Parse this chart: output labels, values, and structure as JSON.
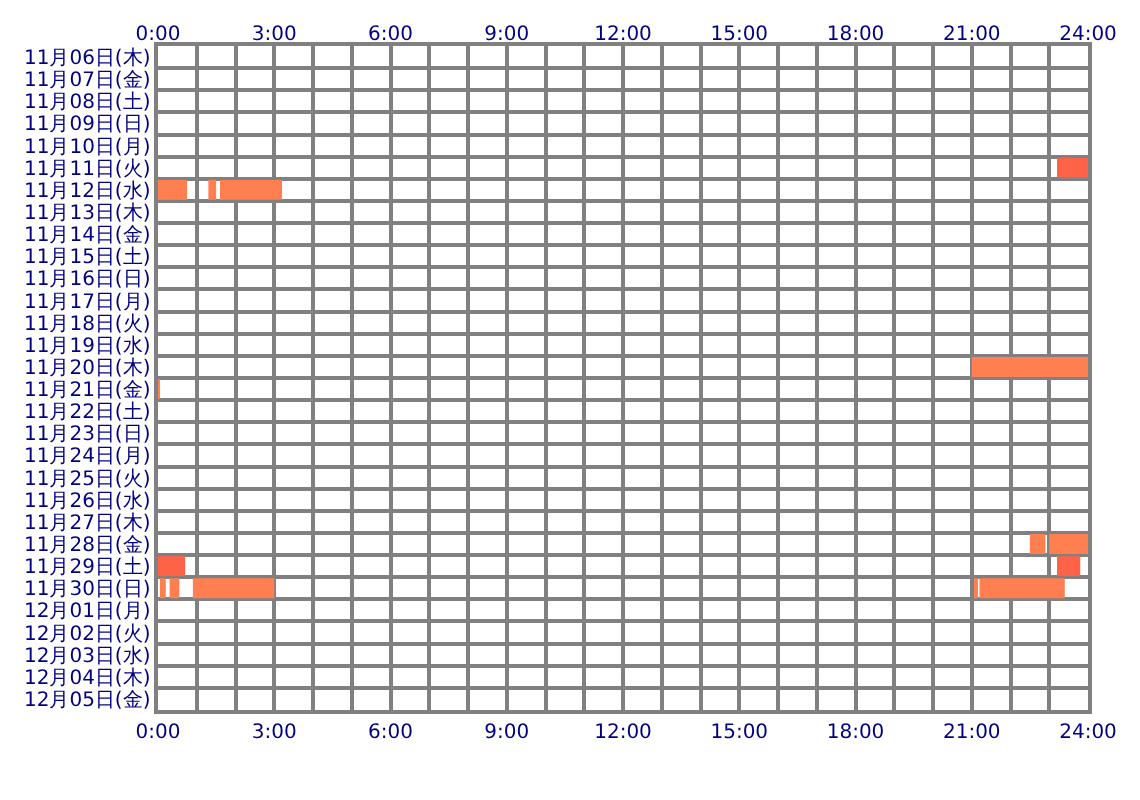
{
  "chart_data": {
    "type": "bar",
    "orientation": "horizontal",
    "grid": true,
    "categories": [
      "11月06日(木)",
      "11月07日(金)",
      "11月08日(土)",
      "11月09日(日)",
      "11月10日(月)",
      "11月11日(火)",
      "11月12日(水)",
      "11月13日(木)",
      "11月14日(金)",
      "11月15日(土)",
      "11月16日(日)",
      "11月17日(月)",
      "11月18日(火)",
      "11月19日(水)",
      "11月20日(木)",
      "11月21日(金)",
      "11月22日(土)",
      "11月23日(日)",
      "11月24日(月)",
      "11月25日(火)",
      "11月26日(水)",
      "11月27日(木)",
      "11月28日(金)",
      "11月29日(土)",
      "11月30日(日)",
      "12月01日(月)",
      "12月02日(火)",
      "12月03日(水)",
      "12月04日(木)",
      "12月05日(金)"
    ],
    "series": [
      {
        "base": [
          null,
          null,
          null,
          null,
          null,
          23.2,
          0,
          null,
          null,
          null,
          null,
          null,
          null,
          null,
          21,
          0,
          null,
          null,
          null,
          null,
          null,
          null,
          22.5,
          0,
          0.05,
          null,
          null,
          null,
          null,
          null
        ],
        "values": [
          null,
          null,
          null,
          null,
          null,
          0.8,
          0.75,
          null,
          null,
          null,
          null,
          null,
          null,
          null,
          3,
          0.05,
          null,
          null,
          null,
          null,
          null,
          null,
          0.4,
          0.7,
          0.15,
          null,
          null,
          null,
          null,
          null
        ],
        "colors": [
          null,
          null,
          null,
          null,
          null,
          "#ff6347",
          "#ff7f50",
          null,
          null,
          null,
          null,
          null,
          null,
          null,
          "#ff7f50",
          "#ff7f50",
          null,
          null,
          null,
          null,
          null,
          null,
          "#ff7f50",
          "#ff6347",
          "#ff7f50",
          null,
          null,
          null,
          null,
          null
        ]
      },
      {
        "base": [
          null,
          null,
          null,
          null,
          null,
          null,
          1.3,
          null,
          null,
          null,
          null,
          null,
          null,
          null,
          null,
          null,
          null,
          null,
          null,
          null,
          null,
          null,
          23,
          23.2,
          0.3,
          null,
          null,
          null,
          null,
          null
        ],
        "values": [
          null,
          null,
          null,
          null,
          null,
          null,
          0.2,
          null,
          null,
          null,
          null,
          null,
          null,
          null,
          null,
          null,
          null,
          null,
          null,
          null,
          null,
          null,
          1,
          0.6,
          0.25,
          null,
          null,
          null,
          null,
          null
        ],
        "colors": [
          null,
          null,
          null,
          null,
          null,
          null,
          "#ff7f50",
          null,
          null,
          null,
          null,
          null,
          null,
          null,
          null,
          null,
          null,
          null,
          null,
          null,
          null,
          null,
          "#ff7f50",
          "#ff6347",
          "#ff7f50",
          null,
          null,
          null,
          null,
          null
        ]
      },
      {
        "base": [
          null,
          null,
          null,
          null,
          null,
          null,
          1.6,
          null,
          null,
          null,
          null,
          null,
          null,
          null,
          null,
          null,
          null,
          null,
          null,
          null,
          null,
          null,
          null,
          null,
          0.9,
          null,
          null,
          null,
          null,
          null
        ],
        "values": [
          null,
          null,
          null,
          null,
          null,
          null,
          1.6,
          null,
          null,
          null,
          null,
          null,
          null,
          null,
          null,
          null,
          null,
          null,
          null,
          null,
          null,
          null,
          null,
          null,
          2.1,
          null,
          null,
          null,
          null,
          null
        ],
        "colors": [
          null,
          null,
          null,
          null,
          null,
          null,
          "#ff7f50",
          null,
          null,
          null,
          null,
          null,
          null,
          null,
          null,
          null,
          null,
          null,
          null,
          null,
          null,
          null,
          null,
          null,
          "#ff7f50",
          null,
          null,
          null,
          null,
          null
        ]
      },
      {
        "base": [
          null,
          null,
          null,
          null,
          null,
          null,
          null,
          null,
          null,
          null,
          null,
          null,
          null,
          null,
          null,
          null,
          null,
          null,
          null,
          null,
          null,
          null,
          null,
          null,
          21.1,
          null,
          null,
          null,
          null,
          null
        ],
        "values": [
          null,
          null,
          null,
          null,
          null,
          null,
          null,
          null,
          null,
          null,
          null,
          null,
          null,
          null,
          null,
          null,
          null,
          null,
          null,
          null,
          null,
          null,
          null,
          null,
          0.05,
          null,
          null,
          null,
          null,
          null
        ],
        "colors": [
          null,
          null,
          null,
          null,
          null,
          null,
          null,
          null,
          null,
          null,
          null,
          null,
          null,
          null,
          null,
          null,
          null,
          null,
          null,
          null,
          null,
          null,
          null,
          null,
          "#ff7f50",
          null,
          null,
          null,
          null,
          null
        ]
      },
      {
        "base": [
          null,
          null,
          null,
          null,
          null,
          null,
          null,
          null,
          null,
          null,
          null,
          null,
          null,
          null,
          null,
          null,
          null,
          null,
          null,
          null,
          null,
          null,
          null,
          null,
          21.2,
          null,
          null,
          null,
          null,
          null
        ],
        "values": [
          null,
          null,
          null,
          null,
          null,
          null,
          null,
          null,
          null,
          null,
          null,
          null,
          null,
          null,
          null,
          null,
          null,
          null,
          null,
          null,
          null,
          null,
          null,
          null,
          2.2,
          null,
          null,
          null,
          null,
          null
        ],
        "colors": [
          null,
          null,
          null,
          null,
          null,
          null,
          null,
          null,
          null,
          null,
          null,
          null,
          null,
          null,
          null,
          null,
          null,
          null,
          null,
          null,
          null,
          null,
          null,
          null,
          "#ff7f50",
          null,
          null,
          null,
          null,
          null
        ]
      }
    ],
    "xlim": [
      0,
      24
    ],
    "xticks": [
      {
        "value": 0,
        "label": "0:00"
      },
      {
        "value": 1,
        "label": null
      },
      {
        "value": 2,
        "label": null
      },
      {
        "value": 3,
        "label": "3:00"
      },
      {
        "value": 4,
        "label": null
      },
      {
        "value": 5,
        "label": null
      },
      {
        "value": 6,
        "label": "6:00"
      },
      {
        "value": 7,
        "label": null
      },
      {
        "value": 8,
        "label": null
      },
      {
        "value": 9,
        "label": "9:00"
      },
      {
        "value": 10,
        "label": null
      },
      {
        "value": 11,
        "label": null
      },
      {
        "value": 12,
        "label": "12:00"
      },
      {
        "value": 13,
        "label": null
      },
      {
        "value": 14,
        "label": null
      },
      {
        "value": 15,
        "label": "15:00"
      },
      {
        "value": 16,
        "label": null
      },
      {
        "value": 17,
        "label": null
      },
      {
        "value": 18,
        "label": "18:00"
      },
      {
        "value": 19,
        "label": null
      },
      {
        "value": 20,
        "label": null
      },
      {
        "value": 21,
        "label": "21:00"
      },
      {
        "value": 22,
        "label": null
      },
      {
        "value": 23,
        "label": null
      },
      {
        "value": 24,
        "label": "24:00"
      }
    ],
    "x2lim": [
      0,
      24
    ],
    "x2ticks": [
      {
        "value": 0,
        "label": "0:00"
      },
      {
        "value": 1,
        "label": null
      },
      {
        "value": 2,
        "label": null
      },
      {
        "value": 3,
        "label": "3:00"
      },
      {
        "value": 4,
        "label": null
      },
      {
        "value": 5,
        "label": null
      },
      {
        "value": 6,
        "label": "6:00"
      },
      {
        "value": 7,
        "label": null
      },
      {
        "value": 8,
        "label": null
      },
      {
        "value": 9,
        "label": "9:00"
      },
      {
        "value": 10,
        "label": null
      },
      {
        "value": 11,
        "label": null
      },
      {
        "value": 12,
        "label": "12:00"
      },
      {
        "value": 13,
        "label": null
      },
      {
        "value": 14,
        "label": null
      },
      {
        "value": 15,
        "label": "15:00"
      },
      {
        "value": 16,
        "label": null
      },
      {
        "value": 17,
        "label": null
      },
      {
        "value": 18,
        "label": "18:00"
      },
      {
        "value": 19,
        "label": null
      },
      {
        "value": 20,
        "label": null
      },
      {
        "value": 21,
        "label": "21:00"
      },
      {
        "value": 22,
        "label": null
      },
      {
        "value": 23,
        "label": null
      },
      {
        "value": 24,
        "label": "24:00"
      }
    ]
  }
}
